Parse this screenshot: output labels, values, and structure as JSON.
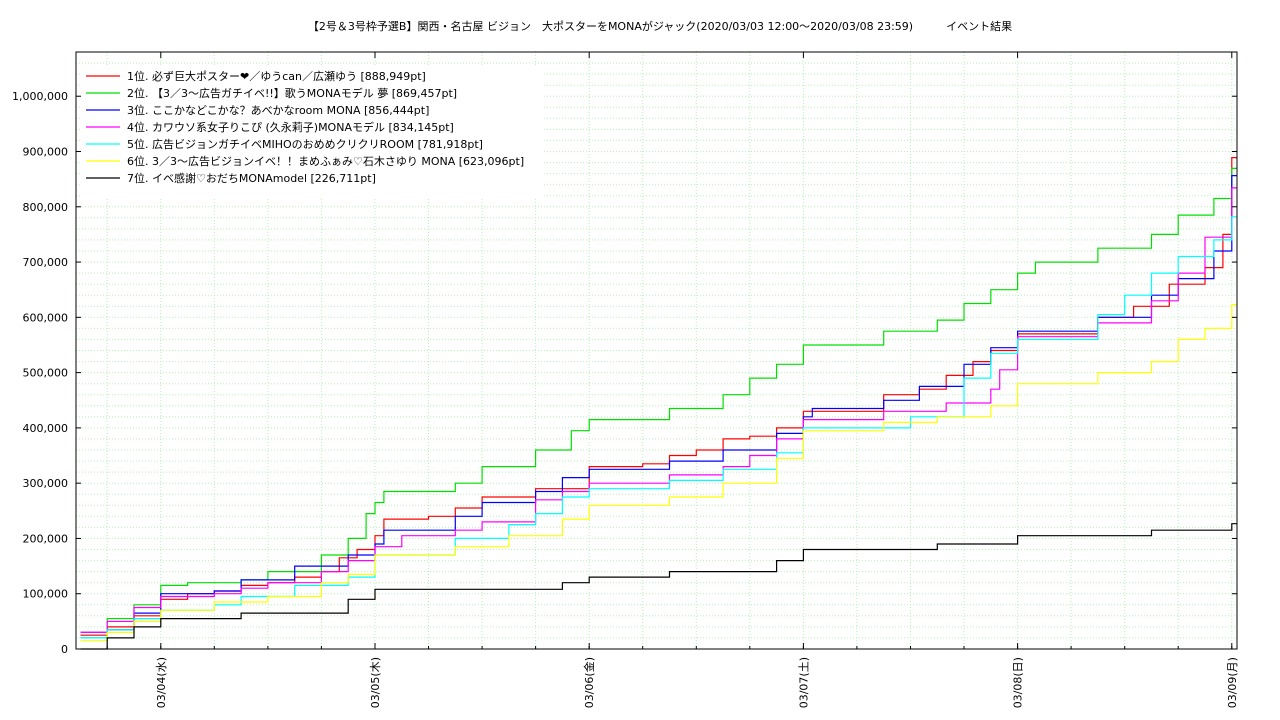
{
  "chart_data": {
    "type": "line",
    "title": "【2号＆3号枠予選B】関西・名古屋 ビジョン　大ポスターをMONAがジャック(2020/03/03 12:00〜2020/03/08 23:59)　　　イベント結果",
    "xlabel": "",
    "ylabel": "",
    "xlim": [
      "2020/03/03 14:30",
      "2020/03/09 00:35"
    ],
    "ylim": [
      0,
      1080000
    ],
    "x_ticks": [
      {
        "x": "2020/03/04 00:00",
        "label": "03/04(水)"
      },
      {
        "x": "2020/03/05 00:00",
        "label": "03/05(木)"
      },
      {
        "x": "2020/03/06 00:00",
        "label": "03/06(金)"
      },
      {
        "x": "2020/03/07 00:00",
        "label": "03/07(土)"
      },
      {
        "x": "2020/03/08 00:00",
        "label": "03/08(日)"
      },
      {
        "x": "2020/03/09 00:00",
        "label": "03/09(月)"
      }
    ],
    "y_ticks": [
      {
        "y": 0,
        "label": "0"
      },
      {
        "y": 100000,
        "label": "100,000"
      },
      {
        "y": 200000,
        "label": "200,000"
      },
      {
        "y": 300000,
        "label": "300,000"
      },
      {
        "y": 400000,
        "label": "400,000"
      },
      {
        "y": 500000,
        "label": "500,000"
      },
      {
        "y": 600000,
        "label": "600,000"
      },
      {
        "y": 700000,
        "label": "700,000"
      },
      {
        "y": 800000,
        "label": "800,000"
      },
      {
        "y": 900000,
        "label": "900,000"
      },
      {
        "y": 1000000,
        "label": "1,000,000"
      }
    ],
    "grid": true,
    "legend_position": "top-left",
    "series": [
      {
        "name": "1位. 必ず巨大ポスター❤︎／ゆうcan／広瀬ゆう [888,949pt]",
        "color": "#ff0000",
        "points": [
          [
            "2020/03/03 15:00",
            25000
          ],
          [
            "2020/03/03 18:00",
            40000
          ],
          [
            "2020/03/03 21:00",
            60000
          ],
          [
            "2020/03/04 00:00",
            90000
          ],
          [
            "2020/03/04 03:00",
            100000
          ],
          [
            "2020/03/04 06:00",
            105000
          ],
          [
            "2020/03/04 09:00",
            115000
          ],
          [
            "2020/03/04 12:00",
            120000
          ],
          [
            "2020/03/04 15:00",
            130000
          ],
          [
            "2020/03/04 18:00",
            140000
          ],
          [
            "2020/03/04 20:00",
            165000
          ],
          [
            "2020/03/04 22:00",
            180000
          ],
          [
            "2020/03/05 00:00",
            205000
          ],
          [
            "2020/03/05 01:00",
            235000
          ],
          [
            "2020/03/05 06:00",
            240000
          ],
          [
            "2020/03/05 09:00",
            255000
          ],
          [
            "2020/03/05 12:00",
            275000
          ],
          [
            "2020/03/05 18:00",
            290000
          ],
          [
            "2020/03/06 00:00",
            330000
          ],
          [
            "2020/03/06 06:00",
            335000
          ],
          [
            "2020/03/06 09:00",
            350000
          ],
          [
            "2020/03/06 12:00",
            360000
          ],
          [
            "2020/03/06 15:00",
            380000
          ],
          [
            "2020/03/06 18:00",
            385000
          ],
          [
            "2020/03/06 21:00",
            400000
          ],
          [
            "2020/03/07 00:00",
            430000
          ],
          [
            "2020/03/07 09:00",
            460000
          ],
          [
            "2020/03/07 13:00",
            470000
          ],
          [
            "2020/03/07 16:00",
            495000
          ],
          [
            "2020/03/07 19:00",
            520000
          ],
          [
            "2020/03/07 21:00",
            540000
          ],
          [
            "2020/03/08 00:00",
            570000
          ],
          [
            "2020/03/08 09:00",
            600000
          ],
          [
            "2020/03/08 13:00",
            620000
          ],
          [
            "2020/03/08 17:00",
            660000
          ],
          [
            "2020/03/08 21:00",
            690000
          ],
          [
            "2020/03/08 23:00",
            750000
          ],
          [
            "2020/03/09 00:00",
            888949
          ],
          [
            "2020/03/09 00:35",
            888949
          ]
        ]
      },
      {
        "name": "2位. 【3／3〜広告ガチイベ!!】歌うMONAモデル 夢 [869,457pt]",
        "color": "#00e000",
        "points": [
          [
            "2020/03/03 15:00",
            20000
          ],
          [
            "2020/03/03 18:00",
            55000
          ],
          [
            "2020/03/03 21:00",
            80000
          ],
          [
            "2020/03/04 00:00",
            115000
          ],
          [
            "2020/03/04 03:00",
            120000
          ],
          [
            "2020/03/04 09:00",
            125000
          ],
          [
            "2020/03/04 12:00",
            140000
          ],
          [
            "2020/03/04 18:00",
            170000
          ],
          [
            "2020/03/04 21:00",
            200000
          ],
          [
            "2020/03/04 23:00",
            245000
          ],
          [
            "2020/03/05 00:00",
            265000
          ],
          [
            "2020/03/05 01:00",
            285000
          ],
          [
            "2020/03/05 09:00",
            300000
          ],
          [
            "2020/03/05 12:00",
            330000
          ],
          [
            "2020/03/05 18:00",
            360000
          ],
          [
            "2020/03/05 22:00",
            395000
          ],
          [
            "2020/03/06 00:00",
            415000
          ],
          [
            "2020/03/06 09:00",
            435000
          ],
          [
            "2020/03/06 15:00",
            460000
          ],
          [
            "2020/03/06 18:00",
            490000
          ],
          [
            "2020/03/06 21:00",
            515000
          ],
          [
            "2020/03/07 00:00",
            550000
          ],
          [
            "2020/03/07 09:00",
            575000
          ],
          [
            "2020/03/07 15:00",
            595000
          ],
          [
            "2020/03/07 18:00",
            625000
          ],
          [
            "2020/03/07 21:00",
            650000
          ],
          [
            "2020/03/08 00:00",
            680000
          ],
          [
            "2020/03/08 02:00",
            700000
          ],
          [
            "2020/03/08 09:00",
            725000
          ],
          [
            "2020/03/08 15:00",
            750000
          ],
          [
            "2020/03/08 18:00",
            785000
          ],
          [
            "2020/03/08 22:00",
            815000
          ],
          [
            "2020/03/09 00:00",
            869457
          ],
          [
            "2020/03/09 00:35",
            869457
          ]
        ]
      },
      {
        "name": "3位. ここかなどこかな？あべかなroom MONA [856,444pt]",
        "color": "#0000ff",
        "points": [
          [
            "2020/03/03 15:00",
            30000
          ],
          [
            "2020/03/03 18:00",
            35000
          ],
          [
            "2020/03/03 21:00",
            65000
          ],
          [
            "2020/03/04 00:00",
            100000
          ],
          [
            "2020/03/04 06:00",
            105000
          ],
          [
            "2020/03/04 09:00",
            125000
          ],
          [
            "2020/03/04 15:00",
            150000
          ],
          [
            "2020/03/04 21:00",
            170000
          ],
          [
            "2020/03/05 00:00",
            190000
          ],
          [
            "2020/03/05 01:00",
            215000
          ],
          [
            "2020/03/05 09:00",
            240000
          ],
          [
            "2020/03/05 12:00",
            265000
          ],
          [
            "2020/03/05 18:00",
            285000
          ],
          [
            "2020/03/05 21:00",
            310000
          ],
          [
            "2020/03/06 00:00",
            325000
          ],
          [
            "2020/03/06 09:00",
            340000
          ],
          [
            "2020/03/06 15:00",
            360000
          ],
          [
            "2020/03/06 21:00",
            390000
          ],
          [
            "2020/03/07 00:00",
            420000
          ],
          [
            "2020/03/07 01:00",
            435000
          ],
          [
            "2020/03/07 09:00",
            450000
          ],
          [
            "2020/03/07 13:00",
            475000
          ],
          [
            "2020/03/07 18:00",
            515000
          ],
          [
            "2020/03/07 21:00",
            545000
          ],
          [
            "2020/03/08 00:00",
            575000
          ],
          [
            "2020/03/08 09:00",
            600000
          ],
          [
            "2020/03/08 15:00",
            640000
          ],
          [
            "2020/03/08 18:00",
            670000
          ],
          [
            "2020/03/08 22:00",
            720000
          ],
          [
            "2020/03/09 00:00",
            856444
          ],
          [
            "2020/03/09 00:35",
            856444
          ]
        ]
      },
      {
        "name": "4位. カワウソ系女子りこぴ (久永莉子)MONAモデル [834,145pt]",
        "color": "#ff00ff",
        "points": [
          [
            "2020/03/03 15:00",
            30000
          ],
          [
            "2020/03/03 18:00",
            50000
          ],
          [
            "2020/03/03 21:00",
            75000
          ],
          [
            "2020/03/04 00:00",
            95000
          ],
          [
            "2020/03/04 06:00",
            100000
          ],
          [
            "2020/03/04 09:00",
            110000
          ],
          [
            "2020/03/04 12:00",
            120000
          ],
          [
            "2020/03/04 18:00",
            140000
          ],
          [
            "2020/03/04 21:00",
            160000
          ],
          [
            "2020/03/05 00:00",
            185000
          ],
          [
            "2020/03/05 03:00",
            205000
          ],
          [
            "2020/03/05 09:00",
            215000
          ],
          [
            "2020/03/05 12:00",
            230000
          ],
          [
            "2020/03/05 18:00",
            270000
          ],
          [
            "2020/03/05 21:00",
            285000
          ],
          [
            "2020/03/06 00:00",
            300000
          ],
          [
            "2020/03/06 09:00",
            315000
          ],
          [
            "2020/03/06 15:00",
            330000
          ],
          [
            "2020/03/06 18:00",
            350000
          ],
          [
            "2020/03/06 21:00",
            380000
          ],
          [
            "2020/03/07 00:00",
            415000
          ],
          [
            "2020/03/07 09:00",
            430000
          ],
          [
            "2020/03/07 16:00",
            445000
          ],
          [
            "2020/03/07 21:00",
            470000
          ],
          [
            "2020/03/07 22:00",
            505000
          ],
          [
            "2020/03/08 00:00",
            565000
          ],
          [
            "2020/03/08 09:00",
            590000
          ],
          [
            "2020/03/08 15:00",
            630000
          ],
          [
            "2020/03/08 18:00",
            680000
          ],
          [
            "2020/03/08 21:00",
            745000
          ],
          [
            "2020/03/09 00:00",
            834145
          ],
          [
            "2020/03/09 00:35",
            834145
          ]
        ]
      },
      {
        "name": "5位. 広告ビジョンガチイベMIHOのおめめクリクリROOM [781,918pt]",
        "color": "#00ffff",
        "points": [
          [
            "2020/03/03 15:00",
            20000
          ],
          [
            "2020/03/03 18:00",
            35000
          ],
          [
            "2020/03/03 21:00",
            55000
          ],
          [
            "2020/03/04 00:00",
            70000
          ],
          [
            "2020/03/04 06:00",
            80000
          ],
          [
            "2020/03/04 09:00",
            95000
          ],
          [
            "2020/03/04 15:00",
            115000
          ],
          [
            "2020/03/04 21:00",
            130000
          ],
          [
            "2020/03/05 00:00",
            170000
          ],
          [
            "2020/03/05 09:00",
            200000
          ],
          [
            "2020/03/05 15:00",
            225000
          ],
          [
            "2020/03/05 18:00",
            245000
          ],
          [
            "2020/03/05 21:00",
            275000
          ],
          [
            "2020/03/06 00:00",
            290000
          ],
          [
            "2020/03/06 09:00",
            305000
          ],
          [
            "2020/03/06 15:00",
            325000
          ],
          [
            "2020/03/06 21:00",
            355000
          ],
          [
            "2020/03/07 00:00",
            400000
          ],
          [
            "2020/03/07 12:00",
            420000
          ],
          [
            "2020/03/07 18:00",
            490000
          ],
          [
            "2020/03/07 21:00",
            535000
          ],
          [
            "2020/03/08 00:00",
            560000
          ],
          [
            "2020/03/08 09:00",
            605000
          ],
          [
            "2020/03/08 12:00",
            640000
          ],
          [
            "2020/03/08 15:00",
            680000
          ],
          [
            "2020/03/08 18:00",
            710000
          ],
          [
            "2020/03/08 22:00",
            740000
          ],
          [
            "2020/03/09 00:00",
            781918
          ],
          [
            "2020/03/09 00:35",
            781918
          ]
        ]
      },
      {
        "name": "6位. 3／3〜広告ビジョンイベ！！まめふぁみ♡石木さゆり MONA [623,096pt]",
        "color": "#ffff00",
        "points": [
          [
            "2020/03/03 15:00",
            15000
          ],
          [
            "2020/03/03 18:00",
            30000
          ],
          [
            "2020/03/03 21:00",
            50000
          ],
          [
            "2020/03/04 00:00",
            70000
          ],
          [
            "2020/03/04 06:00",
            85000
          ],
          [
            "2020/03/04 12:00",
            95000
          ],
          [
            "2020/03/04 18:00",
            120000
          ],
          [
            "2020/03/04 21:00",
            135000
          ],
          [
            "2020/03/05 00:00",
            170000
          ],
          [
            "2020/03/05 09:00",
            185000
          ],
          [
            "2020/03/05 15:00",
            205000
          ],
          [
            "2020/03/05 21:00",
            235000
          ],
          [
            "2020/03/06 00:00",
            260000
          ],
          [
            "2020/03/06 09:00",
            275000
          ],
          [
            "2020/03/06 15:00",
            300000
          ],
          [
            "2020/03/06 21:00",
            345000
          ],
          [
            "2020/03/07 00:00",
            395000
          ],
          [
            "2020/03/07 09:00",
            410000
          ],
          [
            "2020/03/07 15:00",
            420000
          ],
          [
            "2020/03/07 21:00",
            440000
          ],
          [
            "2020/03/08 00:00",
            480000
          ],
          [
            "2020/03/08 09:00",
            500000
          ],
          [
            "2020/03/08 15:00",
            520000
          ],
          [
            "2020/03/08 18:00",
            560000
          ],
          [
            "2020/03/08 21:00",
            580000
          ],
          [
            "2020/03/09 00:00",
            623096
          ],
          [
            "2020/03/09 00:35",
            623096
          ]
        ]
      },
      {
        "name": "7位. イベ感謝♡おだちMONAmodel [226,711pt]",
        "color": "#000000",
        "points": [
          [
            "2020/03/03 15:00",
            0
          ],
          [
            "2020/03/03 18:00",
            20000
          ],
          [
            "2020/03/03 21:00",
            40000
          ],
          [
            "2020/03/04 00:00",
            55000
          ],
          [
            "2020/03/04 09:00",
            65000
          ],
          [
            "2020/03/04 21:00",
            90000
          ],
          [
            "2020/03/05 00:00",
            108000
          ],
          [
            "2020/03/05 21:00",
            120000
          ],
          [
            "2020/03/06 00:00",
            130000
          ],
          [
            "2020/03/06 09:00",
            140000
          ],
          [
            "2020/03/06 21:00",
            160000
          ],
          [
            "2020/03/07 00:00",
            180000
          ],
          [
            "2020/03/07 15:00",
            190000
          ],
          [
            "2020/03/08 00:00",
            205000
          ],
          [
            "2020/03/08 15:00",
            215000
          ],
          [
            "2020/03/09 00:00",
            226711
          ],
          [
            "2020/03/09 00:35",
            226711
          ]
        ]
      }
    ]
  }
}
